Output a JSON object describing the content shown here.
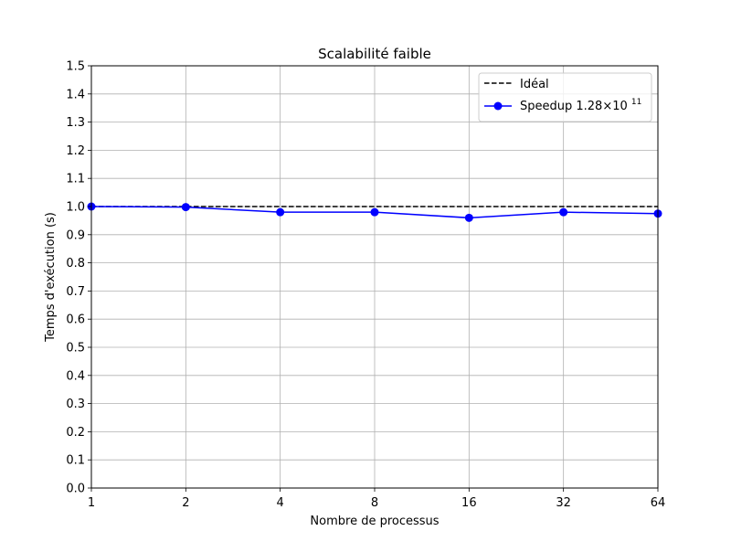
{
  "chart_data": {
    "type": "line",
    "title": "Scalabilité faible",
    "xlabel": "Nombre de processus",
    "ylabel": "Temps d'exécution (s)",
    "x_scale": "log2",
    "x": [
      1,
      2,
      4,
      8,
      16,
      32,
      64
    ],
    "x_ticks": [
      "1",
      "2",
      "4",
      "8",
      "16",
      "32",
      "64"
    ],
    "ylim": [
      0,
      1.5
    ],
    "y_ticks": [
      "0.0",
      "0.1",
      "0.2",
      "0.3",
      "0.4",
      "0.5",
      "0.6",
      "0.7",
      "0.8",
      "0.9",
      "1.0",
      "1.1",
      "1.2",
      "1.3",
      "1.4",
      "1.5"
    ],
    "grid": true,
    "legend_position": "top-right",
    "series": [
      {
        "name": "Idéal",
        "style": "dashed",
        "marker": "none",
        "color": "#000000",
        "values": [
          1.0,
          1.0,
          1.0,
          1.0,
          1.0,
          1.0,
          1.0
        ]
      },
      {
        "name": "Speedup 1.28×10",
        "name_superscript": "11",
        "style": "solid",
        "marker": "circle",
        "color": "#0000ff",
        "values": [
          1.0,
          0.998,
          0.98,
          0.98,
          0.96,
          0.98,
          0.975
        ]
      }
    ]
  }
}
